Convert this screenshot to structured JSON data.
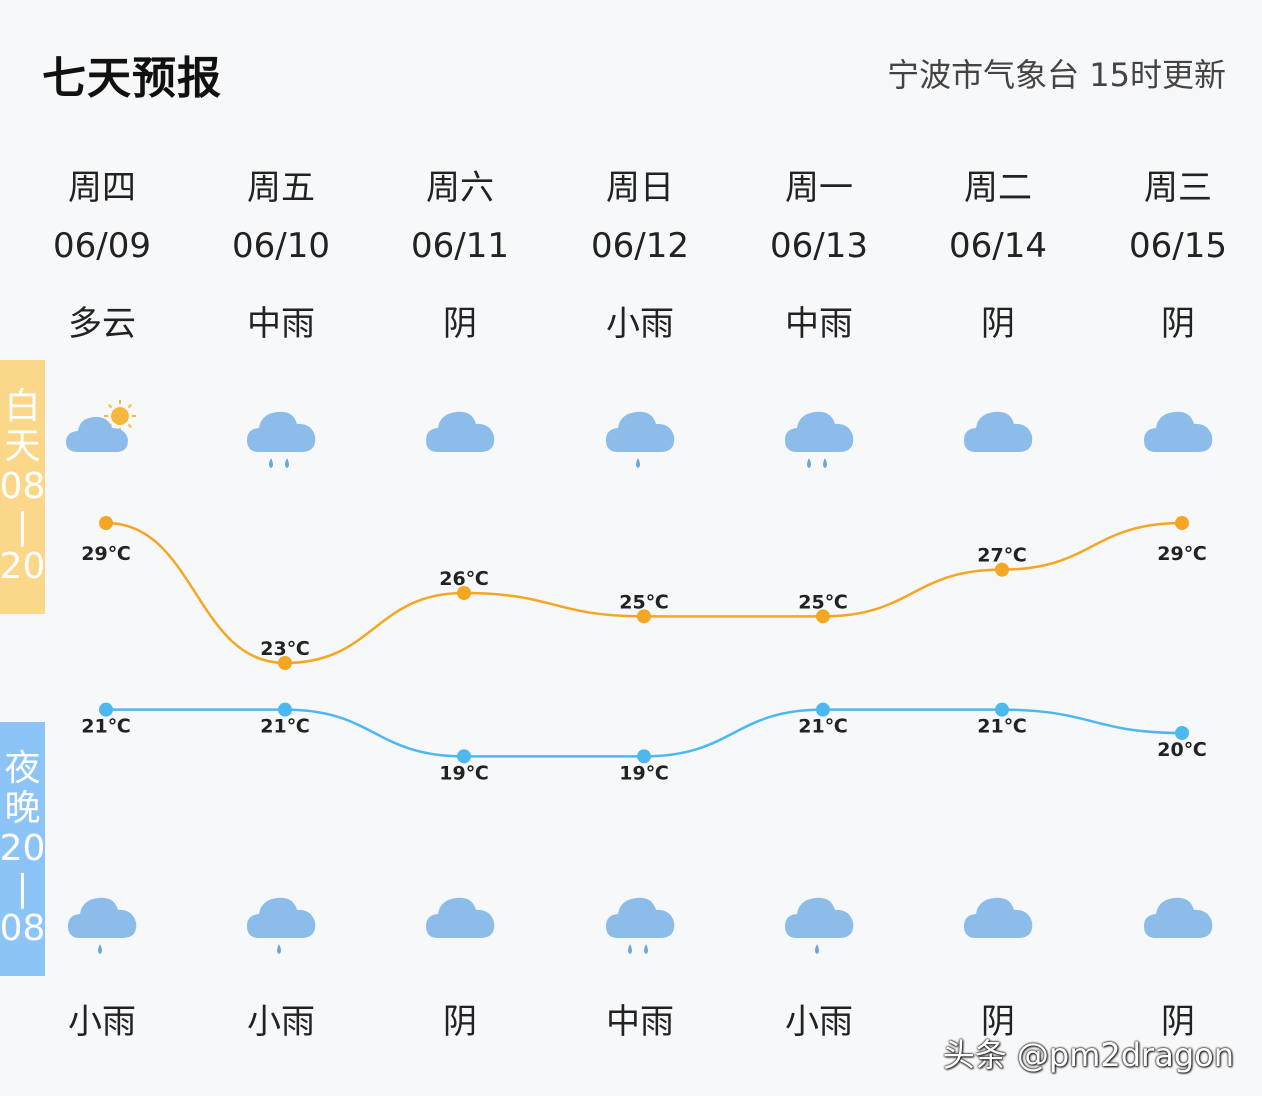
{
  "header": {
    "title": "七天预报",
    "source": "宁波市气象台 15时更新"
  },
  "side_labels": {
    "day": [
      "白",
      "天",
      "08",
      "|",
      "20"
    ],
    "night": [
      "夜",
      "晚",
      "20",
      "|",
      "08"
    ]
  },
  "days": [
    {
      "weekday": "周四",
      "date": "06/09",
      "day_weather": "多云",
      "night_weather": "小雨",
      "day_icon": "partly-cloudy-icon",
      "night_icon": "light-rain-icon"
    },
    {
      "weekday": "周五",
      "date": "06/10",
      "day_weather": "中雨",
      "night_weather": "小雨",
      "day_icon": "moderate-rain-icon",
      "night_icon": "light-rain-icon"
    },
    {
      "weekday": "周六",
      "date": "06/11",
      "day_weather": "阴",
      "night_weather": "阴",
      "day_icon": "overcast-icon",
      "night_icon": "overcast-icon"
    },
    {
      "weekday": "周日",
      "date": "06/12",
      "day_weather": "小雨",
      "night_weather": "中雨",
      "day_icon": "light-rain-icon",
      "night_icon": "moderate-rain-icon"
    },
    {
      "weekday": "周一",
      "date": "06/13",
      "day_weather": "中雨",
      "night_weather": "小雨",
      "day_icon": "moderate-rain-icon",
      "night_icon": "light-rain-icon"
    },
    {
      "weekday": "周二",
      "date": "06/14",
      "day_weather": "阴",
      "night_weather": "阴",
      "day_icon": "overcast-icon",
      "night_icon": "overcast-icon"
    },
    {
      "weekday": "周三",
      "date": "06/15",
      "day_weather": "阴",
      "night_weather": "阴",
      "day_icon": "overcast-icon",
      "night_icon": "overcast-icon"
    }
  ],
  "chart_data": {
    "type": "line",
    "x": [
      "06/09",
      "06/10",
      "06/11",
      "06/12",
      "06/13",
      "06/14",
      "06/15"
    ],
    "series": [
      {
        "values": [
          29,
          23,
          26,
          25,
          25,
          27,
          29
        ],
        "labels": [
          "29℃",
          "23℃",
          "26℃",
          "25℃",
          "25℃",
          "27℃",
          "29℃"
        ],
        "color": "#f5a623"
      },
      {
        "values": [
          21,
          21,
          19,
          19,
          21,
          21,
          20
        ],
        "labels": [
          "21℃",
          "21℃",
          "19℃",
          "19℃",
          "21℃",
          "21℃",
          "20℃"
        ],
        "color": "#4db8f0"
      }
    ]
  },
  "colors": {
    "cloud": "#8bbcea",
    "rain": "#6aa7e0",
    "sun": "#f5b942"
  },
  "watermark": "头条 @pm2dragon"
}
